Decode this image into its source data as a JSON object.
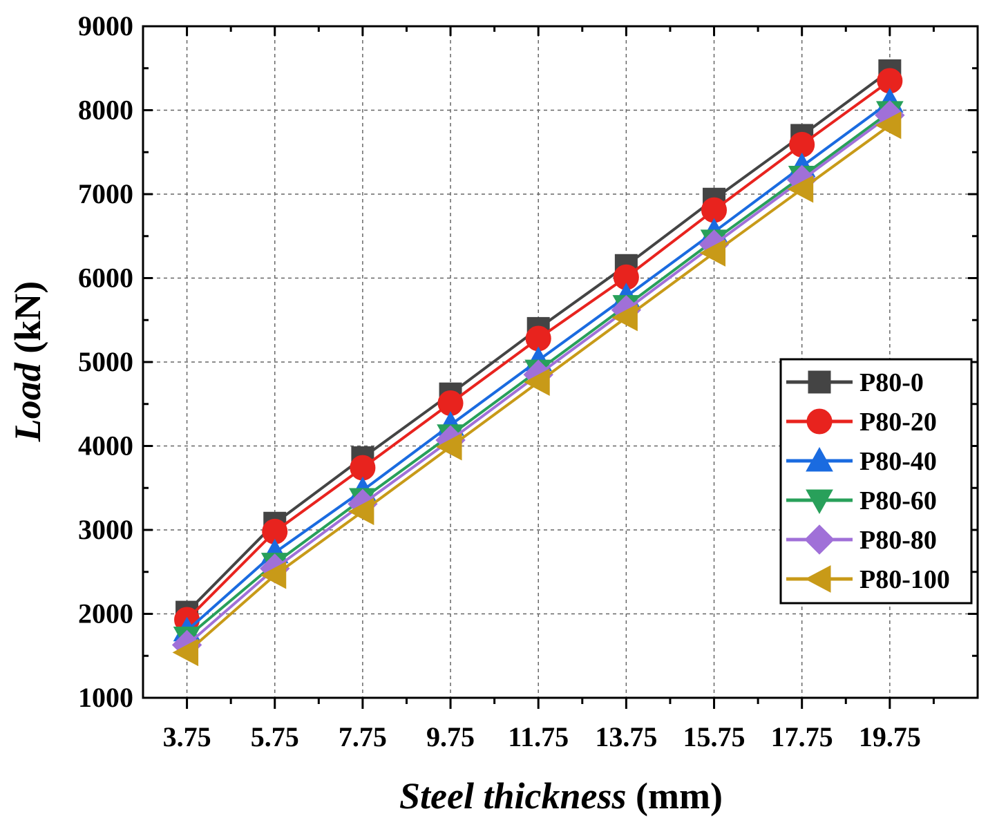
{
  "chart_data": {
    "type": "line",
    "title": "",
    "xlabel_italic": "Steel thickness",
    "xlabel_unit": " (mm)",
    "ylabel_italic": "Load",
    "ylabel_unit": " (kN)",
    "x": [
      3.75,
      5.75,
      7.75,
      9.75,
      11.75,
      13.75,
      15.75,
      17.75,
      19.75
    ],
    "x_tick_labels": [
      "3.75",
      "5.75",
      "7.75",
      "9.75",
      "11.75",
      "13.75",
      "15.75",
      "17.75",
      "19.75"
    ],
    "xlim": [
      2.75,
      21.75
    ],
    "ylim": [
      1000,
      9000
    ],
    "y_ticks": [
      1000,
      2000,
      3000,
      4000,
      5000,
      6000,
      7000,
      8000,
      9000
    ],
    "y_tick_labels": [
      "1000",
      "2000",
      "3000",
      "4000",
      "5000",
      "6000",
      "7000",
      "8000",
      "9000"
    ],
    "grid": true,
    "legend_position": "right-middle",
    "series": [
      {
        "name": "P80-0",
        "color": "#444444",
        "marker": "square",
        "values": [
          2020,
          3080,
          3860,
          4620,
          5400,
          6150,
          6940,
          7700,
          8470
        ]
      },
      {
        "name": "P80-20",
        "color": "#e8231e",
        "marker": "circle",
        "values": [
          1930,
          2980,
          3740,
          4510,
          5280,
          6010,
          6810,
          7590,
          8350
        ]
      },
      {
        "name": "P80-40",
        "color": "#1a6be0",
        "marker": "triangle-up",
        "values": [
          1800,
          2730,
          3470,
          4250,
          5020,
          5780,
          6550,
          7330,
          8100
        ]
      },
      {
        "name": "P80-60",
        "color": "#28a05a",
        "marker": "triangle-down",
        "values": [
          1720,
          2600,
          3370,
          4130,
          4900,
          5670,
          6450,
          7210,
          7980
        ]
      },
      {
        "name": "P80-80",
        "color": "#a070d8",
        "marker": "diamond",
        "values": [
          1630,
          2540,
          3310,
          4070,
          4850,
          5620,
          6400,
          7170,
          7940
        ]
      },
      {
        "name": "P80-100",
        "color": "#c89a18",
        "marker": "triangle-left",
        "values": [
          1540,
          2460,
          3220,
          3990,
          4760,
          5530,
          6300,
          7060,
          7820
        ]
      }
    ]
  }
}
